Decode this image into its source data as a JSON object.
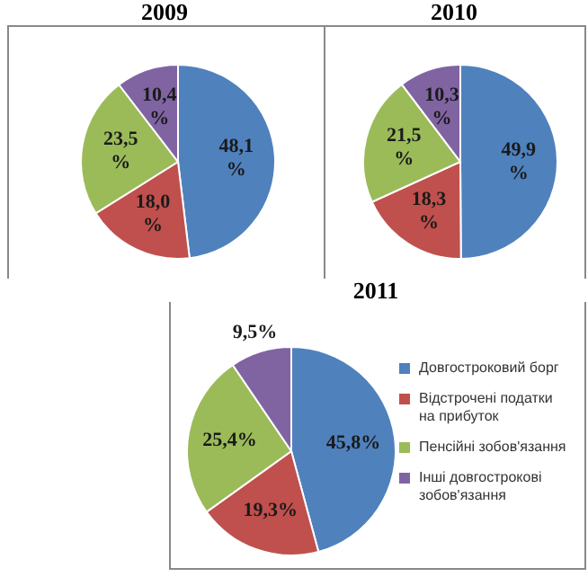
{
  "chart_data": [
    {
      "type": "pie",
      "title": "2009",
      "categories": [
        null,
        null,
        null,
        null
      ],
      "values": [
        48.1,
        18.0,
        23.5,
        10.4
      ],
      "value_labels": [
        "48,1 %",
        "18,0 %",
        "23,5 %",
        "10,4 %"
      ],
      "colors": [
        "#4f81bd",
        "#c0504d",
        "#9bbb59",
        "#8064a2"
      ],
      "legend": false
    },
    {
      "type": "pie",
      "title": "2010",
      "categories": [
        null,
        null,
        null,
        null
      ],
      "values": [
        49.9,
        18.3,
        21.5,
        10.3
      ],
      "value_labels": [
        "49,9 %",
        "18,3 %",
        "21,5 %",
        "10,3 %"
      ],
      "colors": [
        "#4f81bd",
        "#c0504d",
        "#9bbb59",
        "#8064a2"
      ],
      "legend": false
    },
    {
      "type": "pie",
      "title": "2011",
      "categories": [
        "Довгостроковий борг",
        "Відстрочені податки на прибуток",
        "Пенсійні зобов'язання",
        "Інші довгострокові зобов'язання"
      ],
      "values": [
        45.8,
        19.3,
        25.4,
        9.5
      ],
      "value_labels": [
        "45,8%",
        "19,3%",
        "25,4%",
        "9,5%"
      ],
      "colors": [
        "#4f81bd",
        "#c0504d",
        "#9bbb59",
        "#8064a2"
      ],
      "legend": "right"
    }
  ]
}
